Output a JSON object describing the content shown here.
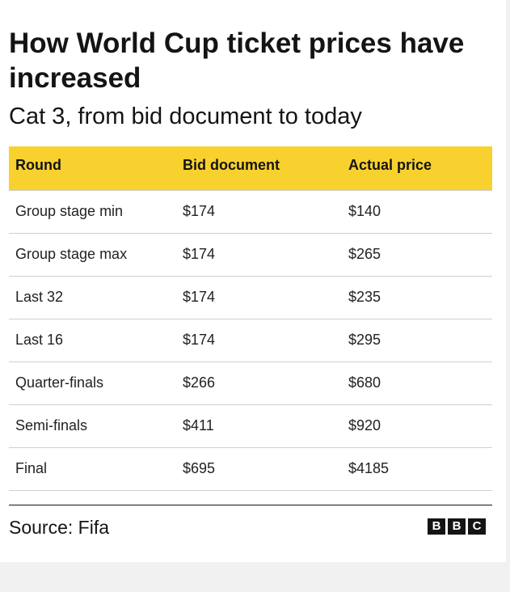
{
  "chart_data": {
    "type": "table",
    "title": "How World Cup ticket prices have increased",
    "subtitle": "Cat 3, from bid document to today",
    "columns": [
      "Round",
      "Bid document",
      "Actual price"
    ],
    "rows": [
      {
        "round": "Group stage min",
        "bid": "$174",
        "actual": "$140"
      },
      {
        "round": "Group stage max",
        "bid": "$174",
        "actual": "$265"
      },
      {
        "round": "Last 32",
        "bid": "$174",
        "actual": "$235"
      },
      {
        "round": "Last 16",
        "bid": "$174",
        "actual": "$295"
      },
      {
        "round": "Quarter-finals",
        "bid": "$266",
        "actual": "$680"
      },
      {
        "round": "Semi-finals",
        "bid": "$411",
        "actual": "$920"
      },
      {
        "round": "Final",
        "bid": "$695",
        "actual": "$4185"
      }
    ],
    "source": "Source: Fifa",
    "header_color": "#f8d12f"
  },
  "logo": {
    "letters": [
      "B",
      "B",
      "C"
    ]
  }
}
